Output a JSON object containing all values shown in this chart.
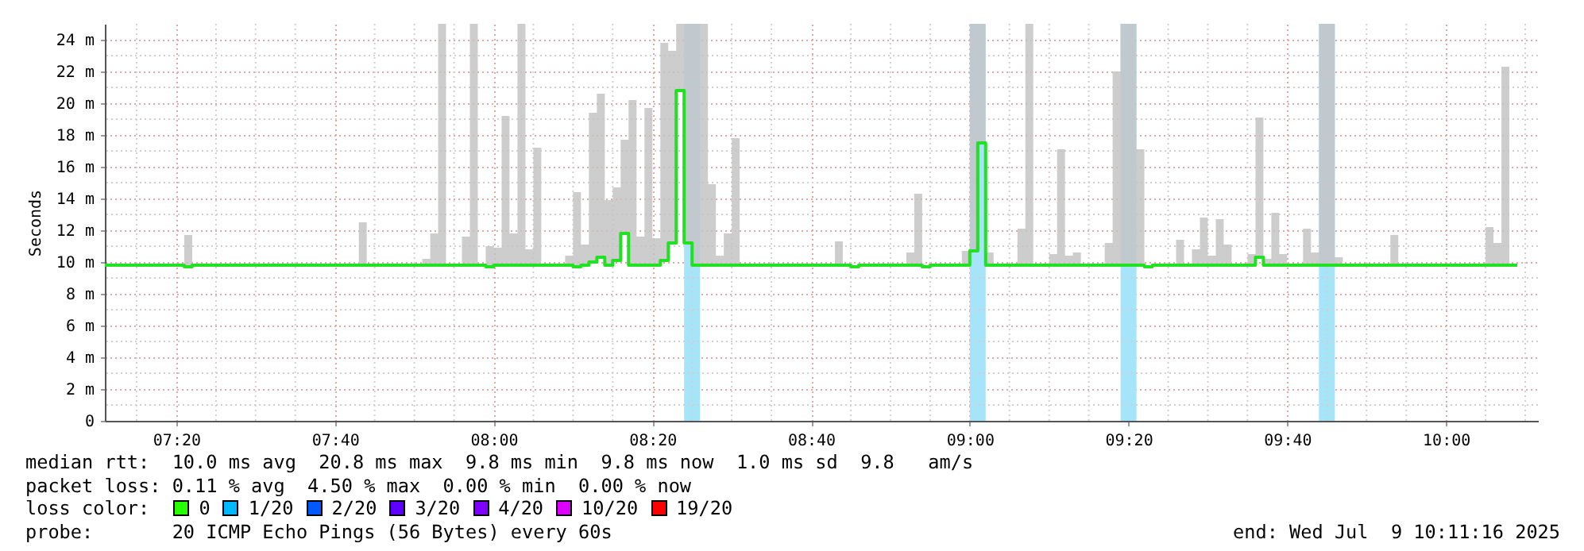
{
  "chart_data": {
    "type": "step",
    "ylabel": "Seconds",
    "x": [
      7.1833,
      7.35,
      7.3667,
      7.7167,
      7.7333,
      7.85,
      7.8667,
      7.8833,
      7.9,
      7.9333,
      7.95,
      7.9667,
      7.9833,
      8,
      8.0167,
      8.0333,
      8.05,
      8.0667,
      8.0833,
      8.1,
      8.15,
      8.1667,
      8.1833,
      8.2,
      8.2167,
      8.2333,
      8.25,
      8.2667,
      8.2833,
      8.3,
      8.3167,
      8.3333,
      8.35,
      8.3667,
      8.3833,
      8.4,
      8.4167,
      8.4333,
      8.45,
      8.4667,
      8.4833,
      8.5,
      8.5167,
      8.7167,
      8.7333,
      8.75,
      8.7667,
      8.8667,
      8.8833,
      8.9,
      8.9167,
      8.9833,
      9,
      9.0167,
      9.0333,
      9.05,
      9.1,
      9.1167,
      9.1333,
      9.1667,
      9.1833,
      9.2,
      9.2167,
      9.2333,
      9.2833,
      9.3,
      9.3167,
      9.3333,
      9.35,
      9.3667,
      9.3833,
      9.4333,
      9.45,
      9.4667,
      9.4833,
      9.5,
      9.5167,
      9.5333,
      9.55,
      9.5833,
      9.6,
      9.6167,
      9.6333,
      9.65,
      9.6667,
      9.7,
      9.7167,
      9.7333,
      9.75,
      9.7667,
      9.7833,
      9.8833,
      9.9,
      10.0833,
      10.1,
      10.1167,
      10.1333,
      10.15
    ],
    "series": [
      {
        "color": "#22e022",
        "values": [
          9.8,
          9.7,
          9.8,
          9.8,
          9.8,
          9.8,
          9.8,
          9.8,
          9.8,
          9.8,
          9.8,
          9.8,
          9.7,
          9.8,
          9.8,
          9.8,
          9.8,
          9.8,
          9.8,
          9.8,
          9.8,
          9.7,
          9.8,
          10.0,
          10.3,
          9.8,
          10.1,
          11.8,
          9.8,
          9.8,
          9.8,
          9.8,
          10.1,
          11.2,
          20.8,
          11.2,
          9.8,
          9.8,
          9.8,
          9.8,
          9.8,
          9.8,
          9.8,
          9.8,
          9.8,
          9.7,
          9.8,
          9.8,
          9.8,
          9.7,
          9.8,
          9.8,
          10.7,
          17.5,
          9.8,
          9.8,
          9.8,
          9.8,
          9.8,
          9.8,
          9.8,
          9.8,
          9.8,
          9.8,
          9.8,
          9.8,
          9.8,
          9.8,
          9.8,
          9.7,
          9.8,
          9.8,
          9.8,
          9.8,
          9.8,
          9.8,
          9.8,
          9.8,
          9.8,
          9.8,
          10.3,
          9.8,
          9.8,
          9.8,
          9.8,
          9.8,
          9.8,
          9.8,
          9.8,
          9.8,
          9.8,
          9.8,
          9.8,
          9.8,
          9.8,
          9.8,
          9.8,
          9.8
        ],
        "lower": [
          9.8,
          9.7,
          9.8,
          9.8,
          9.8,
          9.8,
          9.8,
          9.8,
          9.8,
          9.8,
          9.8,
          9.8,
          9.7,
          9.8,
          9.8,
          9.8,
          9.8,
          9.8,
          9.8,
          9.8,
          9.8,
          9.7,
          9.8,
          10.0,
          10.3,
          9.8,
          10.1,
          11.8,
          9.8,
          9.8,
          9.8,
          9.8,
          10.1,
          11.2,
          20.8,
          11.2,
          9.8,
          9.8,
          9.8,
          9.8,
          9.8,
          9.8,
          9.8,
          9.8,
          9.8,
          9.7,
          9.8,
          9.8,
          9.8,
          9.7,
          9.8,
          9.8,
          10.7,
          17.5,
          9.8,
          9.8,
          9.8,
          9.8,
          9.8,
          9.8,
          9.8,
          9.8,
          9.8,
          9.8,
          9.8,
          9.8,
          9.8,
          9.8,
          9.8,
          9.7,
          9.8,
          9.8,
          9.8,
          9.8,
          9.8,
          9.8,
          9.8,
          9.8,
          9.8,
          9.8,
          10.3,
          9.8,
          9.8,
          9.8,
          9.8,
          9.8,
          9.8,
          9.8,
          9.8,
          9.8,
          9.8,
          9.8,
          9.8,
          9.8,
          9.8,
          9.8,
          9.8,
          9.8
        ],
        "upper": [
          9.8,
          11.7,
          9.8,
          12.5,
          9.8,
          10.2,
          11.8,
          25,
          9.8,
          11.6,
          25,
          9.8,
          11.0,
          10.9,
          19.2,
          11.8,
          25,
          10.8,
          17.2,
          9.8,
          10.4,
          14.4,
          11.1,
          19.4,
          20.6,
          13.9,
          14.7,
          17.7,
          20.2,
          11.6,
          19.7,
          11.5,
          23.8,
          23.3,
          25,
          25,
          25,
          25,
          14.9,
          10.4,
          11.8,
          17.8,
          9.8,
          11.3,
          9.8,
          9.8,
          9.8,
          10.6,
          14.3,
          9.8,
          9.8,
          10.7,
          25,
          25,
          10.6,
          9.8,
          12.1,
          25,
          9.8,
          10.5,
          17.1,
          10.4,
          10.6,
          9.8,
          11.2,
          22.0,
          25,
          25,
          17.1,
          9.8,
          9.8,
          11.4,
          9.8,
          10.8,
          12.8,
          10.4,
          12.7,
          11.1,
          9.8,
          10.5,
          19.1,
          10.2,
          13.1,
          10.5,
          9.8,
          12.1,
          10.6,
          25,
          25,
          10.3,
          9.8,
          11.7,
          9.8,
          12.2,
          11.2,
          22.3,
          9.8,
          9.8
        ]
      }
    ],
    "xlim": [
      7.1833,
      10.1933
    ],
    "xticks": [
      {
        "value": 7.25,
        "label": null
      },
      {
        "value": 7.3333,
        "label": "07:20"
      },
      {
        "value": 7.4167,
        "label": null
      },
      {
        "value": 7.5,
        "label": null
      },
      {
        "value": 7.5833,
        "label": null
      },
      {
        "value": 7.6667,
        "label": "07:40"
      },
      {
        "value": 7.75,
        "label": null
      },
      {
        "value": 7.8333,
        "label": null
      },
      {
        "value": 7.9167,
        "label": null
      },
      {
        "value": 8,
        "label": "08:00"
      },
      {
        "value": 8.0833,
        "label": null
      },
      {
        "value": 8.1667,
        "label": null
      },
      {
        "value": 8.25,
        "label": null
      },
      {
        "value": 8.3333,
        "label": "08:20"
      },
      {
        "value": 8.4167,
        "label": null
      },
      {
        "value": 8.5,
        "label": null
      },
      {
        "value": 8.5833,
        "label": null
      },
      {
        "value": 8.6667,
        "label": "08:40"
      },
      {
        "value": 8.75,
        "label": null
      },
      {
        "value": 8.8333,
        "label": null
      },
      {
        "value": 8.9167,
        "label": null
      },
      {
        "value": 9,
        "label": "09:00"
      },
      {
        "value": 9.0833,
        "label": null
      },
      {
        "value": 9.1667,
        "label": null
      },
      {
        "value": 9.25,
        "label": null
      },
      {
        "value": 9.3333,
        "label": "09:20"
      },
      {
        "value": 9.4167,
        "label": null
      },
      {
        "value": 9.5,
        "label": null
      },
      {
        "value": 9.5833,
        "label": null
      },
      {
        "value": 9.6667,
        "label": "09:40"
      },
      {
        "value": 9.75,
        "label": null
      },
      {
        "value": 9.8333,
        "label": null
      },
      {
        "value": 9.9167,
        "label": null
      },
      {
        "value": 10,
        "label": "10:00"
      },
      {
        "value": 10.0833,
        "label": null
      },
      {
        "value": 10.1667,
        "label": null
      }
    ],
    "ylim": [
      0,
      25
    ],
    "yticks": [
      0,
      {
        "value": 1,
        "label": null
      },
      {
        "value": 2,
        "label": "2 m"
      },
      {
        "value": 3,
        "label": null
      },
      {
        "value": 4,
        "label": "4 m"
      },
      {
        "value": 5,
        "label": null
      },
      {
        "value": 6,
        "label": "6 m"
      },
      {
        "value": 7,
        "label": null
      },
      {
        "value": 8,
        "label": "8 m"
      },
      {
        "value": 9,
        "label": null
      },
      {
        "value": 10,
        "label": "10 m"
      },
      {
        "value": 11,
        "label": null
      },
      {
        "value": 12,
        "label": "12 m"
      },
      {
        "value": 13,
        "label": null
      },
      {
        "value": 14,
        "label": "14 m"
      },
      {
        "value": 15,
        "label": null
      },
      {
        "value": 16,
        "label": "16 m"
      },
      {
        "value": 17,
        "label": null
      },
      {
        "value": 18,
        "label": "18 m"
      },
      {
        "value": 19,
        "label": null
      },
      {
        "value": 20,
        "label": "20 m"
      },
      {
        "value": 21,
        "label": null
      },
      {
        "value": 22,
        "label": "22 m"
      },
      {
        "value": 23,
        "label": null
      },
      {
        "value": 24,
        "label": "24 m"
      }
    ],
    "grid": true,
    "bands": [
      {
        "axis": "x",
        "from": 8.4,
        "to": 8.4333,
        "color": "#a6e4fa"
      },
      {
        "axis": "x",
        "from": 9.0,
        "to": 9.0333,
        "color": "#a6e4fa"
      },
      {
        "axis": "x",
        "from": 9.3167,
        "to": 9.35,
        "color": "#a6e4fa"
      },
      {
        "axis": "x",
        "from": 9.7333,
        "to": 9.7667,
        "color": "#a6e4fa"
      }
    ],
    "annotations": [
      "median rtt:  10.0 ms avg  20.8 ms max  9.8 ms min  9.8 ms now  1.0 ms sd  9.8   am/s",
      "packet loss: 0.11 % avg  4.50 % max  0.00 % min  0.00 % now",
      "loss color:",
      "0",
      "1/20",
      "2/20",
      "3/20",
      "4/20",
      "10/20",
      "19/20",
      "probe:       20 ICMP Echo Pings (56 Bytes) every 60s",
      "end: Wed Jul  9 10:11:16 2025"
    ]
  }
}
